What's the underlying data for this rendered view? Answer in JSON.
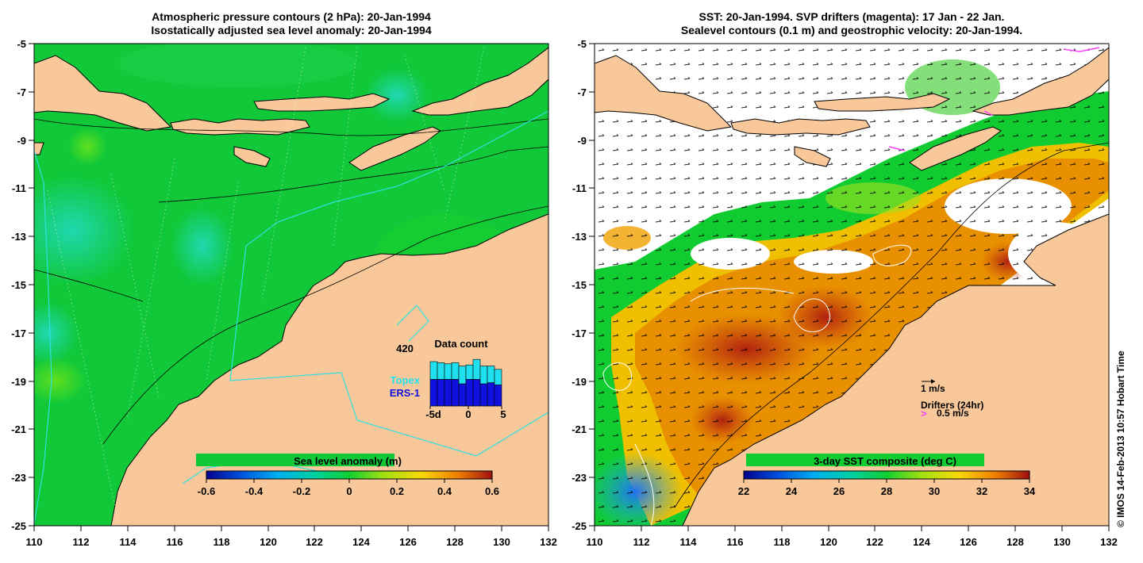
{
  "left_panel": {
    "title_line1": "Atmospheric pressure contours (2 hPa): 20-Jan-1994",
    "title_line2": "Isostatically adjusted sea level anomaly: 20-Jan-1994",
    "x_ticks": [
      "110",
      "112",
      "114",
      "116",
      "118",
      "120",
      "122",
      "124",
      "126",
      "128",
      "130",
      "132"
    ],
    "y_ticks": [
      "-5",
      "-7",
      "-9",
      "-11",
      "-13",
      "-15",
      "-17",
      "-19",
      "-21",
      "-23",
      "-25"
    ],
    "colorbar": {
      "label": "Sea level anomaly (m)",
      "ticks": [
        "-0.6",
        "-0.4",
        "-0.2",
        "0",
        "0.2",
        "0.4",
        "0.6"
      ]
    },
    "tide_gauge_label": "420",
    "data_count": {
      "title": "Data count",
      "legend_topex": "Topex",
      "legend_ers1": "ERS-1",
      "x_ticks": [
        "-5d",
        "0",
        "5"
      ],
      "days": [
        -5,
        -4,
        -3,
        -2,
        -1,
        0,
        1,
        2,
        3,
        4
      ],
      "topex": [
        0.32,
        0.3,
        0.28,
        0.3,
        0.32,
        0.26,
        0.36,
        0.32,
        0.3,
        0.28
      ],
      "ers1": [
        0.48,
        0.48,
        0.48,
        0.48,
        0.4,
        0.48,
        0.48,
        0.4,
        0.42,
        0.38
      ]
    }
  },
  "right_panel": {
    "title_line1": "SST: 20-Jan-1994. SVP drifters (magenta): 17 Jan - 22 Jan.",
    "title_line2": "Sealevel contours (0.1 m) and geostrophic velocity: 20-Jan-1994.",
    "x_ticks": [
      "110",
      "112",
      "114",
      "116",
      "118",
      "120",
      "122",
      "124",
      "126",
      "128",
      "130",
      "132"
    ],
    "y_ticks": [
      "-5",
      "-7",
      "-9",
      "-11",
      "-13",
      "-15",
      "-17",
      "-19",
      "-21",
      "-23",
      "-25"
    ],
    "colorbar": {
      "label": "3-day SST composite (deg C)",
      "ticks": [
        "22",
        "24",
        "26",
        "28",
        "30",
        "32",
        "34"
      ]
    },
    "velocity_scale_label": "1 m/s",
    "drifters_label": "Drifters (24hr)",
    "drifter_scale_label": "0.5 m/s"
  },
  "credit": "© IMOS 14-Feb-2013 10:57 Hobart Time",
  "colors": {
    "land": "#f8c89a",
    "ocean_green": "#10cc30",
    "cyan_line": "#30e0e0",
    "magenta": "#ff40ff",
    "topex": "#20e0f0",
    "ers1": "#1010e0"
  }
}
